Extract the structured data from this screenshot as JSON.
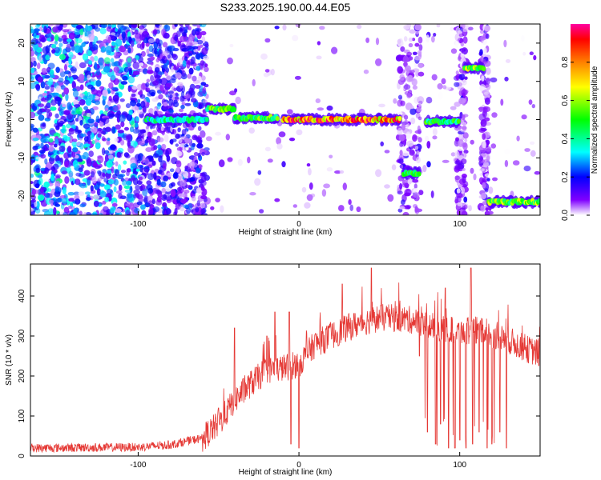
{
  "title": "S233.2025.190.00.44.E05",
  "chart_data": [
    {
      "type": "heatmap",
      "xlabel": "Height of straight line (km)",
      "ylabel": "Frequency (Hz)",
      "xlim": [
        -167,
        150
      ],
      "ylim": [
        -25,
        25
      ],
      "x_ticks": [
        -100,
        0,
        100
      ],
      "y_ticks": [
        -20,
        -10,
        0,
        10,
        20
      ],
      "colorbar": {
        "label": "Normalized spectral amplitude",
        "range": [
          0.0,
          1.0
        ],
        "ticks": [
          "0.0",
          "0.2",
          "0.4",
          "0.6",
          "0.8"
        ],
        "colors": [
          "#ffffff",
          "#8000ff",
          "#0000ff",
          "#00ffff",
          "#00ff00",
          "#ffff00",
          "#ff8000",
          "#ff0000",
          "#ff00a0"
        ]
      },
      "ridges": [
        {
          "x0": -95,
          "x1": -57,
          "f": 0.0,
          "amp": 0.45
        },
        {
          "x0": -57,
          "x1": -40,
          "f": 2.8,
          "amp": 0.6
        },
        {
          "x0": -40,
          "x1": -13,
          "f": 0.5,
          "amp": 0.6
        },
        {
          "x0": -10,
          "x1": 63,
          "f": 0.0,
          "amp": 0.95
        },
        {
          "x0": 65,
          "x1": 75,
          "f": -14.0,
          "amp": 0.55
        },
        {
          "x0": 79,
          "x1": 100,
          "f": -0.5,
          "amp": 0.55
        },
        {
          "x0": 103,
          "x1": 115,
          "f": 13.5,
          "amp": 0.7
        },
        {
          "x0": 118,
          "x1": 150,
          "f": -21.5,
          "amp": 0.65
        }
      ]
    },
    {
      "type": "line",
      "xlabel": "Height of straight line (km)",
      "ylabel": "SNR (10 * v/v)",
      "xlim": [
        -167,
        150
      ],
      "ylim": [
        0,
        480
      ],
      "x_ticks": [
        -100,
        0,
        100
      ],
      "y_ticks": [
        0,
        100,
        200,
        300,
        400
      ],
      "line_color": "#e53935",
      "envelope": [
        {
          "x": -167,
          "y": 20
        },
        {
          "x": -100,
          "y": 22
        },
        {
          "x": -80,
          "y": 28
        },
        {
          "x": -60,
          "y": 45
        },
        {
          "x": -50,
          "y": 80
        },
        {
          "x": -40,
          "y": 140
        },
        {
          "x": -30,
          "y": 180
        },
        {
          "x": -20,
          "y": 215
        },
        {
          "x": -10,
          "y": 220
        },
        {
          "x": 0,
          "y": 230
        },
        {
          "x": 10,
          "y": 280
        },
        {
          "x": 20,
          "y": 300
        },
        {
          "x": 30,
          "y": 320
        },
        {
          "x": 40,
          "y": 335
        },
        {
          "x": 50,
          "y": 345
        },
        {
          "x": 60,
          "y": 345
        },
        {
          "x": 70,
          "y": 340
        },
        {
          "x": 80,
          "y": 325
        },
        {
          "x": 90,
          "y": 320
        },
        {
          "x": 100,
          "y": 310
        },
        {
          "x": 110,
          "y": 315
        },
        {
          "x": 120,
          "y": 305
        },
        {
          "x": 130,
          "y": 290
        },
        {
          "x": 140,
          "y": 270
        },
        {
          "x": 150,
          "y": 255
        }
      ],
      "spikes": [
        {
          "x": -50,
          "y": 120
        },
        {
          "x": -40,
          "y": 320
        },
        {
          "x": -20,
          "y": 300
        },
        {
          "x": -15,
          "y": 360
        },
        {
          "x": -6,
          "y": 360
        },
        {
          "x": 27,
          "y": 430
        },
        {
          "x": 45,
          "y": 470
        },
        {
          "x": 91,
          "y": 420
        },
        {
          "x": 107,
          "y": 470
        }
      ],
      "dips": [
        {
          "x": -5,
          "y": 30
        },
        {
          "x": 0,
          "y": 20
        },
        {
          "x": 75,
          "y": 250
        },
        {
          "x": 80,
          "y": 60
        },
        {
          "x": 85,
          "y": 30
        },
        {
          "x": 88,
          "y": 80
        },
        {
          "x": 93,
          "y": 20
        },
        {
          "x": 97,
          "y": 20
        },
        {
          "x": 100,
          "y": 40
        },
        {
          "x": 104,
          "y": 20
        },
        {
          "x": 108,
          "y": 30
        },
        {
          "x": 112,
          "y": 60
        },
        {
          "x": 117,
          "y": 20
        },
        {
          "x": 120,
          "y": 30
        },
        {
          "x": 125,
          "y": 60
        },
        {
          "x": 129,
          "y": 20
        }
      ]
    }
  ]
}
